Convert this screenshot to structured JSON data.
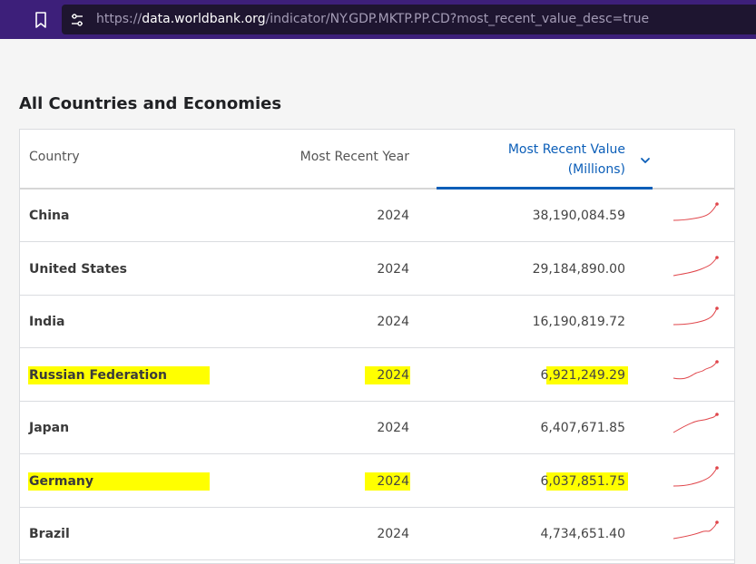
{
  "browser": {
    "url_scheme": "https://",
    "url_host": "data.worldbank.org",
    "url_path": "/indicator/NY.GDP.MKTP.PP.CD?most_recent_value_desc=true",
    "bookmark_icon": "bookmark-icon",
    "site_info_icon": "site-settings-icon"
  },
  "section_title": "All Countries and Economies",
  "table": {
    "headers": {
      "country": "Country",
      "year": "Most Recent Year",
      "value_line1": "Most Recent Value",
      "value_line2": "(Millions)"
    },
    "sort_icon": "chevron-down-icon",
    "accent_color": "#0b5eb8",
    "highlight_color": "#ffff00",
    "sparkline_color": "#e0454a",
    "rows": [
      {
        "country": "China",
        "year": "2024",
        "value": "38,190,084.59",
        "highlighted": false
      },
      {
        "country": "United States",
        "year": "2024",
        "value": "29,184,890.00",
        "highlighted": false
      },
      {
        "country": "India",
        "year": "2024",
        "value": "16,190,819.72",
        "highlighted": false
      },
      {
        "country": "Russian Federation",
        "year": "2024",
        "value": "6,921,249.29",
        "highlighted": true
      },
      {
        "country": "Japan",
        "year": "2024",
        "value": "6,407,671.85",
        "highlighted": false
      },
      {
        "country": "Germany",
        "year": "2024",
        "value": "6,037,851.75",
        "highlighted": true
      },
      {
        "country": "Brazil",
        "year": "2024",
        "value": "4,734,651.40",
        "highlighted": false
      }
    ]
  }
}
